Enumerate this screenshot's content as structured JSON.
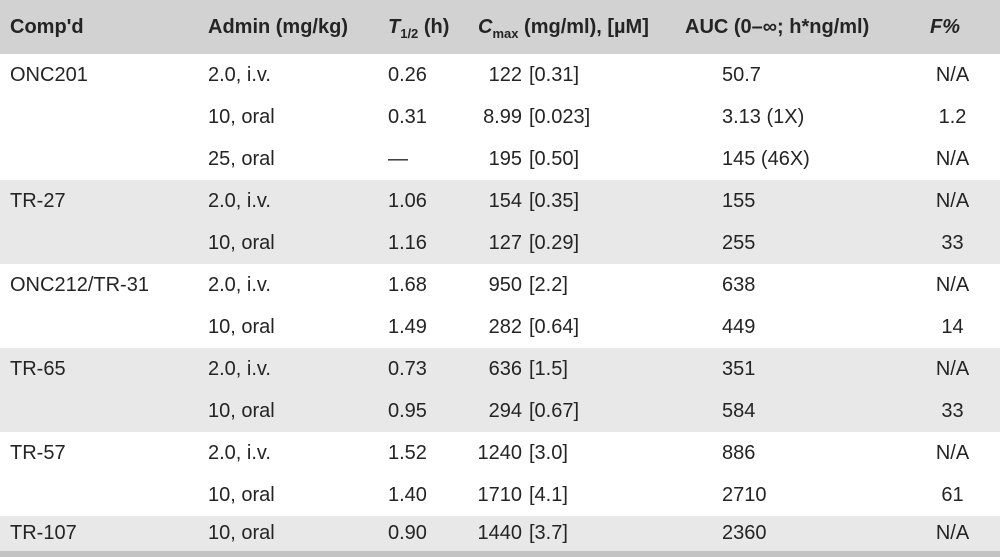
{
  "table": {
    "header": {
      "compound": "Comp'd",
      "admin": "Admin (mg/kg)",
      "thalf": {
        "pre": "T",
        "sub": "1/2",
        "post": " (h)"
      },
      "cmax": {
        "pre": "C",
        "sub": "max",
        "post": " (mg/ml), [µM]"
      },
      "auc": "AUC (0–∞; h*ng/ml)",
      "f": "F%"
    },
    "groups": [
      {
        "compound": "ONC201",
        "shaded": false,
        "rows": [
          {
            "admin": "2.0, i.v.",
            "thalf": "0.26",
            "cmax_value": "122",
            "cmax_um": "[0.31]",
            "auc": "50.7",
            "f": "N/A"
          },
          {
            "admin": "10, oral",
            "thalf": "0.31",
            "cmax_value": "8.99",
            "cmax_um": "[0.023]",
            "auc": "3.13 (1X)",
            "f": "1.2"
          },
          {
            "admin": "25, oral",
            "thalf": "—",
            "cmax_value": "195",
            "cmax_um": "[0.50]",
            "auc": "145 (46X)",
            "f": "N/A"
          }
        ]
      },
      {
        "compound": "TR-27",
        "shaded": true,
        "rows": [
          {
            "admin": "2.0, i.v.",
            "thalf": "1.06",
            "cmax_value": "154",
            "cmax_um": "[0.35]",
            "auc": "155",
            "f": "N/A"
          },
          {
            "admin": "10, oral",
            "thalf": "1.16",
            "cmax_value": "127",
            "cmax_um": "[0.29]",
            "auc": "255",
            "f": "33"
          }
        ]
      },
      {
        "compound": "ONC212/TR-31",
        "shaded": false,
        "rows": [
          {
            "admin": "2.0, i.v.",
            "thalf": "1.68",
            "cmax_value": "950",
            "cmax_um": "[2.2]",
            "auc": "638",
            "f": "N/A"
          },
          {
            "admin": "10, oral",
            "thalf": "1.49",
            "cmax_value": "282",
            "cmax_um": "[0.64]",
            "auc": "449",
            "f": "14"
          }
        ]
      },
      {
        "compound": "TR-65",
        "shaded": true,
        "rows": [
          {
            "admin": "2.0, i.v.",
            "thalf": "0.73",
            "cmax_value": "636",
            "cmax_um": "[1.5]",
            "auc": "351",
            "f": "N/A"
          },
          {
            "admin": "10, oral",
            "thalf": "0.95",
            "cmax_value": "294",
            "cmax_um": "[0.67]",
            "auc": "584",
            "f": "33"
          }
        ]
      },
      {
        "compound": "TR-57",
        "shaded": false,
        "rows": [
          {
            "admin": "2.0, i.v.",
            "thalf": "1.52",
            "cmax_value": "1240",
            "cmax_um": "[3.0]",
            "auc": "886",
            "f": "N/A"
          },
          {
            "admin": "10, oral",
            "thalf": "1.40",
            "cmax_value": "1710",
            "cmax_um": "[4.1]",
            "auc": "2710",
            "f": "61"
          }
        ]
      },
      {
        "compound": "TR-107",
        "shaded": true,
        "rows": [
          {
            "admin": "10, oral",
            "thalf": "0.90",
            "cmax_value": "1440",
            "cmax_um": "[3.7]",
            "auc": "2360",
            "f": "N/A"
          }
        ]
      }
    ],
    "colors": {
      "header_bg": "#d2d2d2",
      "shaded_row_bg": "#e8e8e8",
      "bottom_strip": "#c3c3c3",
      "text": "#242424"
    }
  }
}
